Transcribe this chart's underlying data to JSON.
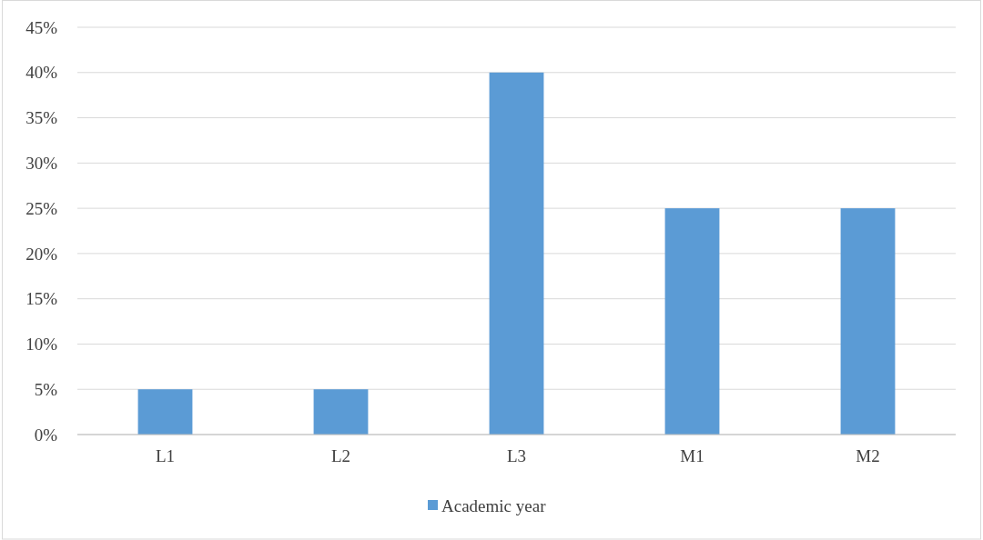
{
  "chart_data": {
    "type": "bar",
    "categories": [
      "L1",
      "L2",
      "L3",
      "M1",
      "M2"
    ],
    "series": [
      {
        "name": "Academic year",
        "color": "#5b9bd5",
        "values": [
          5,
          5,
          40,
          25,
          25
        ]
      }
    ],
    "ylim": [
      0,
      45
    ],
    "yticks": [
      {
        "value": 0,
        "label": "0%"
      },
      {
        "value": 5,
        "label": "5%"
      },
      {
        "value": 10,
        "label": "10%"
      },
      {
        "value": 15,
        "label": "15%"
      },
      {
        "value": 20,
        "label": "20%"
      },
      {
        "value": 25,
        "label": "25%"
      },
      {
        "value": 30,
        "label": "30%"
      },
      {
        "value": 35,
        "label": "35%"
      },
      {
        "value": 40,
        "label": "40%"
      },
      {
        "value": 45,
        "label": "45%"
      }
    ],
    "grid": "y",
    "legend": "bottom"
  }
}
